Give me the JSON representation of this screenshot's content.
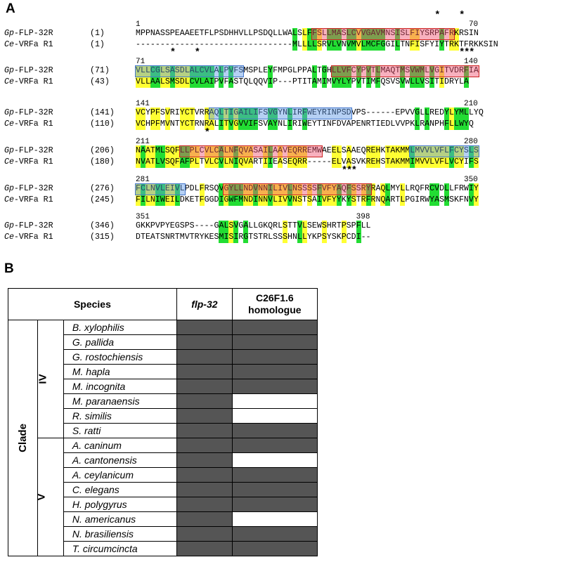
{
  "panel_a_label": "A",
  "panel_b_label": "B",
  "alignment": {
    "seq1_name_prefix": "Gp",
    "seq1_name_suffix": "-FLP-32R",
    "seq2_name_prefix": "Ce",
    "seq2_name_suffix": "-VRFa R1",
    "blocks": [
      {
        "ruler_start": "1",
        "ruler_end": "70",
        "pos1": "(1)",
        "pos2": "(1)",
        "seq1": "MPPNASSPEAAEETFLPSDHHVLLPSDQLLWALSLFFSLLMASLCVVGAVMNSISLFIYSRPAFRKRSIN",
        "seq2": "--------------------------------MLLLLSRVLVNVMVLMCFGGILTNFISFYIYTRKTFRKKSIN"
      },
      {
        "ruler_start": "71",
        "ruler_end": "140",
        "pos1": "(71)",
        "pos2": "(43)",
        "seq1": "VLLCGLSASDLALCVLALPVFSMSPLEYFMPGLPPALTGHLLVFCYPVTLMAQTMSVWMLVGITVDRFIA",
        "seq2": "VLLAALSMSDLCVLAIPVFASTQLQQVIP---PTITAMIMVYLYPVTIMFQSVSVWLLVSITIDRYLA"
      },
      {
        "ruler_start": "141",
        "ruler_end": "210",
        "pos1": "(141)",
        "pos2": "(110)",
        "seq1": "VCYPFSVRIYCTVRRAQLTIGAILIFSVGYNLIRFWEYRINPSDVPS------EPVVGLLREDYLYMLLYQ",
        "seq2": "VCHPFMVNTYCTRNRALITVGVVIFSVAYNLIRIWEYTINFDVAPENRTIEDLVVPKLRANPHFLLWYQ"
      },
      {
        "ruler_start": "211",
        "ruler_end": "280",
        "pos1": "(206)",
        "pos2": "(180)",
        "seq1": "NAATMLSQFLLPLCVLCALNFQVASAILAAVEQRREMWAEELSAAEQREHKTAKMMLMVVLVFLFCYSLS",
        "seq2": "NVATLVSQFAFPLTVLCVLNIQVARTIIEASEQRR-----ELVASVKREHSTAKMMIMVVLVFLVCYIFS"
      },
      {
        "ruler_start": "281",
        "ruler_end": "350",
        "pos1": "(276)",
        "pos2": "(245)",
        "seq1": "FCLNVLEIVLPDLFRSQVGYLLNDVNNILIVLNSSSSFVFYAQFSSRYRAQLMYLLRQFRCVDLLFRWIY",
        "seq2": "FILNIWEILDKETFGGDIGWFMNDINNVLIVVNSTSAIVFYYKYSTRFRNQARTLPGIRWYASMSKFNVY"
      },
      {
        "ruler_start": "351",
        "ruler_end": "398",
        "pos1": "(346)",
        "pos2": "(315)",
        "seq1": "GKKPVPYEGSPS----GALSVGALLGKQRLSTTVLSEWSHRTPSPFLL",
        "seq2": "DTEATSNRTMVTRYKESMISIRGTSTRLSSSHNLLYKPSYSKPCDI--"
      }
    ],
    "star_symbol": "*"
  },
  "table": {
    "header_species": "Species",
    "header_flp": "flp-32",
    "header_c26_line1": "C26F1.6",
    "header_c26_line2": "homologue",
    "clade_label": "Clade",
    "groups": [
      {
        "label": "IV",
        "rows": [
          {
            "species": "B. xylophilis",
            "flp": true,
            "c26": true
          },
          {
            "species": "G. pallida",
            "flp": true,
            "c26": true
          },
          {
            "species": "G. rostochiensis",
            "flp": true,
            "c26": true
          },
          {
            "species": "M. hapla",
            "flp": true,
            "c26": true
          },
          {
            "species": "M. incognita",
            "flp": true,
            "c26": true
          },
          {
            "species": "M. paranaensis",
            "flp": true,
            "c26": false
          },
          {
            "species": "R. similis",
            "flp": true,
            "c26": false
          },
          {
            "species": "S. ratti",
            "flp": true,
            "c26": true
          }
        ]
      },
      {
        "label": "V",
        "rows": [
          {
            "species": "A. caninum",
            "flp": true,
            "c26": true
          },
          {
            "species": "A. cantonensis",
            "flp": true,
            "c26": false
          },
          {
            "species": "A. ceylanicum",
            "flp": true,
            "c26": true
          },
          {
            "species": "C. elegans",
            "flp": true,
            "c26": true
          },
          {
            "species": "H. polygyrus",
            "flp": true,
            "c26": true
          },
          {
            "species": "N. americanus",
            "flp": true,
            "c26": false
          },
          {
            "species": "N. brasiliensis",
            "flp": true,
            "c26": true
          },
          {
            "species": "T. circumcincta",
            "flp": true,
            "c26": true
          }
        ]
      }
    ],
    "colors": {
      "present": "#555555",
      "absent": "#ffffff"
    }
  }
}
